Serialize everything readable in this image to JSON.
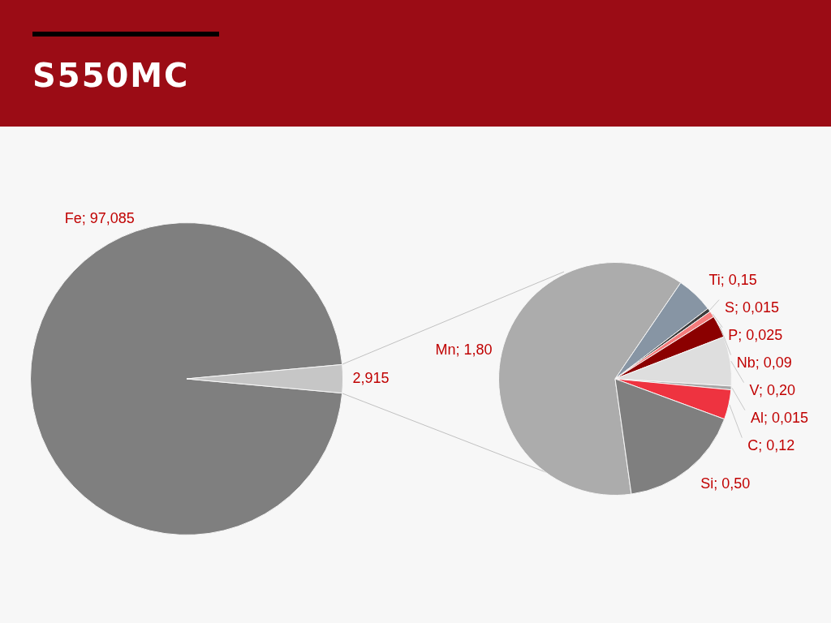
{
  "chart_data": [
    {
      "type": "pie",
      "title": "S550MC",
      "categories": [
        "Fe",
        null
      ],
      "values": [
        97.085,
        2.915
      ],
      "colors": [
        "#7f7f7f",
        "#c6c6c6"
      ],
      "value_labels": [
        "97,085",
        "2,915"
      ],
      "legend": false
    },
    {
      "type": "pie",
      "categories": [
        "Mn",
        "Ti",
        "S",
        "P",
        "Nb",
        "V",
        "Al",
        "C",
        "Si"
      ],
      "values": [
        1.8,
        0.15,
        0.015,
        0.025,
        0.09,
        0.2,
        0.015,
        0.12,
        0.5
      ],
      "colors": [
        "#acacac",
        "#8795a4",
        "#3c3c3c",
        "#f47c7c",
        "#8b0000",
        "#dedede",
        "#a6a6a6",
        "#ee3340",
        "#7f7f7f"
      ],
      "value_labels": [
        "1,80",
        "0,15",
        "0,015",
        "0,025",
        "0,09",
        "0,20",
        "0,015",
        "0,12",
        "0,50"
      ],
      "legend": false
    }
  ]
}
